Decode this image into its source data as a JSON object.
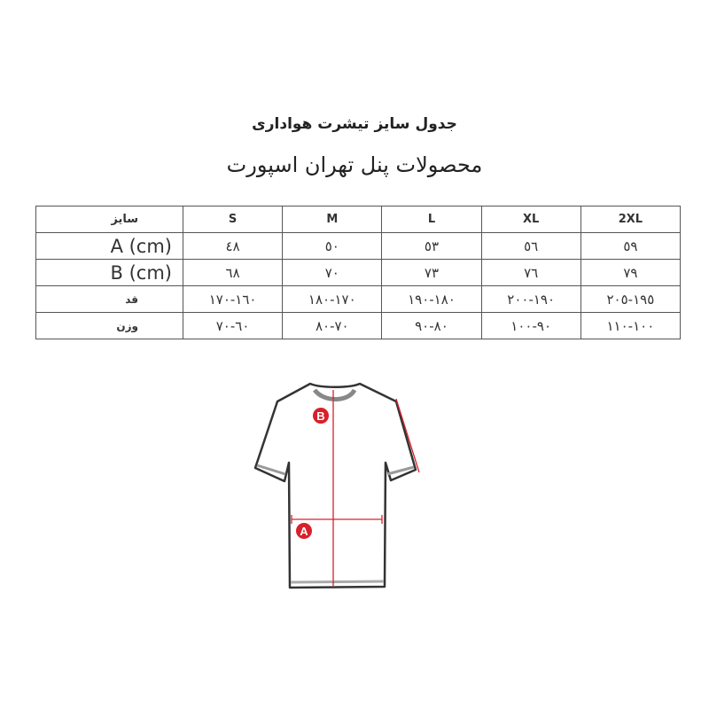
{
  "title": "جدول سایز تیشرت هواداری",
  "subtitle": "محصولات پنل تهران اسپورت",
  "table": {
    "header": [
      "سایز",
      "S",
      "M",
      "L",
      "XL",
      "2XL"
    ],
    "rows": [
      [
        "A (cm)",
        "٤٨",
        "٥٠",
        "٥٣",
        "٥٦",
        "٥٩"
      ],
      [
        "B (cm)",
        "٦٨",
        "٧٠",
        "٧٣",
        "٧٦",
        "٧٩"
      ],
      [
        "قد",
        "١٦٠-١٧٠",
        "١٧٠-١٨٠",
        "١٨٠-١٩٠",
        "١٩٠-٢٠٠",
        "١٩٥-٢٠٥"
      ],
      [
        "وزن",
        "٦٠-٧٠",
        "٧٠-٨٠",
        "٨٠-٩٠",
        "٩٠-١٠٠",
        "١٠٠-١١٠"
      ]
    ]
  },
  "diagram": {
    "label_a": "A",
    "label_b": "B",
    "accent": "#d9202a"
  }
}
